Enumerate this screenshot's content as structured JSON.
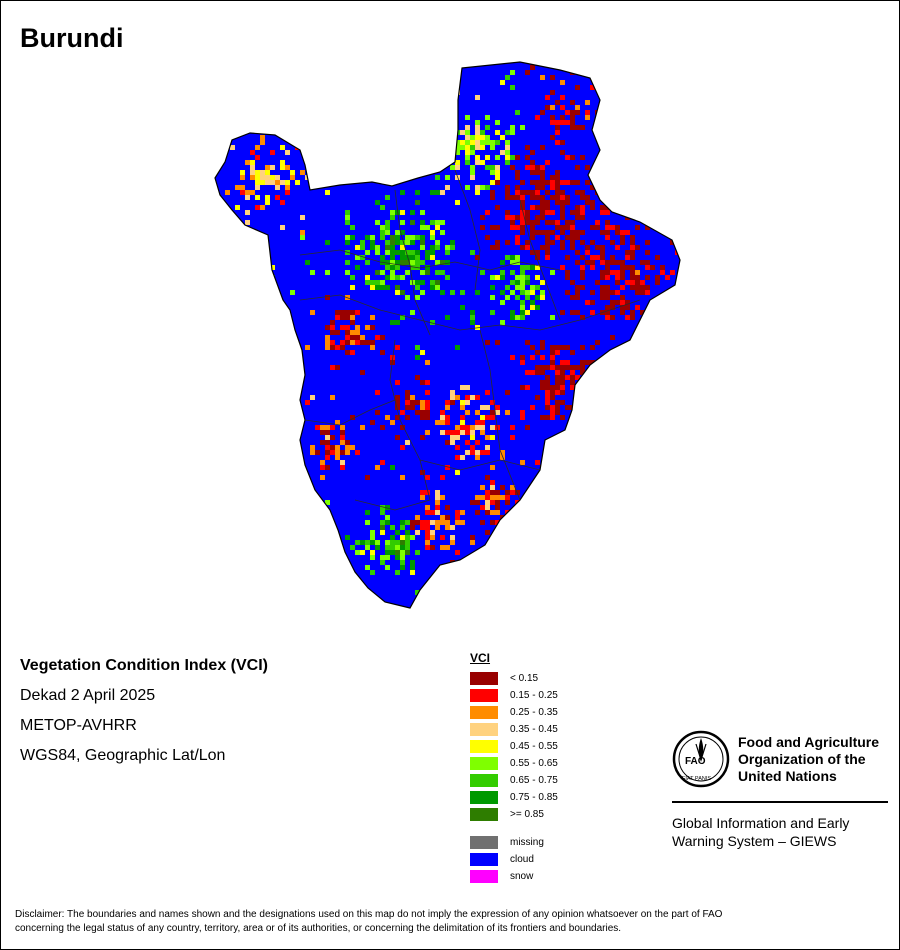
{
  "map": {
    "title": "Burundi"
  },
  "info": {
    "index_name": "Vegetation Condition Index (VCI)",
    "period": "Dekad 2 April 2025",
    "sensor": "METOP-AVHRR",
    "projection": "WGS84, Geographic Lat/Lon"
  },
  "legend": {
    "title": "VCI",
    "classes": [
      {
        "label": "< 0.15",
        "color": "#990000"
      },
      {
        "label": "0.15 - 0.25",
        "color": "#ff0000"
      },
      {
        "label": "0.25 - 0.35",
        "color": "#ff8c00"
      },
      {
        "label": "0.35 - 0.45",
        "color": "#ffd27f"
      },
      {
        "label": "0.45 - 0.55",
        "color": "#ffff00"
      },
      {
        "label": "0.55 - 0.65",
        "color": "#7fff00"
      },
      {
        "label": "0.65 - 0.75",
        "color": "#33cc00"
      },
      {
        "label": "0.75 - 0.85",
        "color": "#009900"
      },
      {
        "label": ">= 0.85",
        "color": "#2e7d00"
      }
    ],
    "other": [
      {
        "label": "missing",
        "color": "#707070"
      },
      {
        "label": "cloud",
        "color": "#0000ff"
      },
      {
        "label": "snow",
        "color": "#ff00ff"
      }
    ]
  },
  "logo": {
    "org_line1": "Food and Agriculture",
    "org_line2": "Organization of the",
    "org_line3": "United Nations",
    "seal_text": "FAO",
    "seal_motto": "FIAT PANIS",
    "giews_line1": "Global Information and Early",
    "giews_line2": "Warning System – GIEWS"
  },
  "disclaimer": {
    "line1": "Disclaimer: The boundaries and names shown and the designations used on this map do not imply the expression of any opinion whatsoever on the part of FAO",
    "line2": "concerning the legal status of any country, territory, area or of its authorities, or concerning the delimitation of its frontiers and boundaries."
  }
}
